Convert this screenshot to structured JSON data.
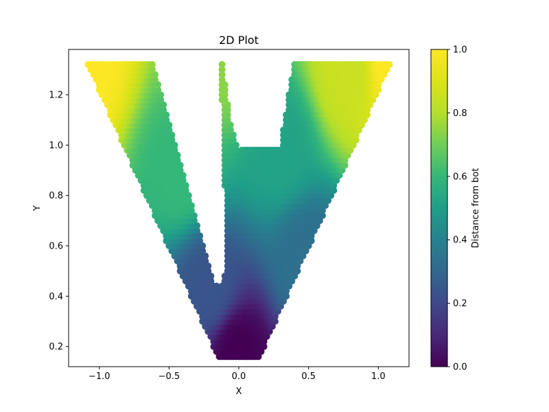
{
  "chart_data": {
    "type": "scatter",
    "title": "2D Plot",
    "xlabel": "X",
    "ylabel": "Y",
    "xlim": [
      -1.22,
      1.22
    ],
    "ylim": [
      0.12,
      1.38
    ],
    "xticks": [
      -1.0,
      -0.5,
      0.0,
      0.5,
      1.0
    ],
    "xtick_labels": [
      "−1.0",
      "−0.5",
      "0.0",
      "0.5",
      "1.0"
    ],
    "yticks": [
      0.2,
      0.4,
      0.6,
      0.8,
      1.0,
      1.2
    ],
    "ytick_labels": [
      "0.2",
      "0.4",
      "0.6",
      "0.8",
      "1.0",
      "1.2"
    ],
    "colormap": "viridis",
    "color_variable": "Distance from bot",
    "colorbar": {
      "label": "Distance from bot",
      "range": [
        0.0,
        1.0
      ],
      "ticks": [
        0.0,
        0.2,
        0.4,
        0.6,
        0.8,
        1.0
      ],
      "tick_labels": [
        "0.0",
        "0.2",
        "0.4",
        "0.6",
        "0.8",
        "1.0"
      ]
    },
    "grid": false,
    "region_outline": [
      [
        -1.1,
        1.34
      ],
      [
        -0.62,
        1.34
      ],
      [
        -0.18,
        0.45
      ],
      [
        -0.13,
        0.43
      ],
      [
        -0.09,
        0.51
      ],
      [
        -0.1,
        0.83
      ],
      [
        -0.13,
        1.34
      ],
      [
        -0.12,
        1.34
      ],
      [
        -0.06,
        1.1
      ],
      [
        0.0,
        0.98
      ],
      [
        0.02,
        0.99
      ],
      [
        0.3,
        0.99
      ],
      [
        0.4,
        1.34
      ],
      [
        1.1,
        1.34
      ],
      [
        0.15,
        0.16
      ],
      [
        -0.15,
        0.16
      ]
    ],
    "reference_points": [
      {
        "x": 0.0,
        "y": 0.17,
        "value": 0.0
      },
      {
        "x": -0.2,
        "y": 0.44,
        "value": 0.24
      },
      {
        "x": 0.5,
        "y": 0.55,
        "value": 0.33
      },
      {
        "x": 0.3,
        "y": 0.99,
        "value": 0.52
      },
      {
        "x": -0.4,
        "y": 0.9,
        "value": 0.6
      },
      {
        "x": -0.13,
        "y": 1.34,
        "value": 0.74
      },
      {
        "x": 0.8,
        "y": 1.3,
        "value": 0.85
      },
      {
        "x": -1.1,
        "y": 1.34,
        "value": 1.0
      },
      {
        "x": 1.1,
        "y": 1.34,
        "value": 1.0
      }
    ],
    "marker_color_scale": [
      "#440154",
      "#3b528b",
      "#21918c",
      "#5ec962",
      "#fde725"
    ]
  }
}
